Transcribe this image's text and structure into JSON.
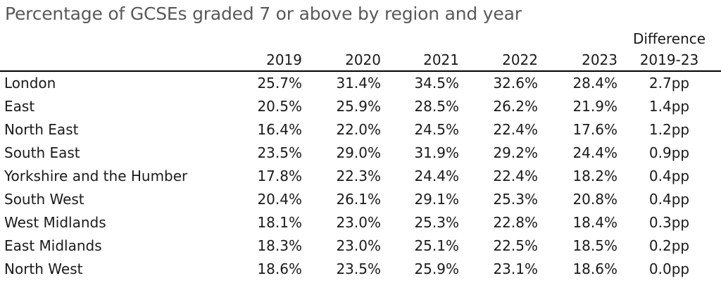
{
  "title": "Percentage of GCSEs graded 7 or above by region and year",
  "columns": {
    "region": "",
    "years": [
      "2019",
      "2020",
      "2021",
      "2022",
      "2023"
    ],
    "difference_line1": "Difference",
    "difference_line2": "2019-23"
  },
  "rows": [
    {
      "region": "London",
      "values": [
        "25.7%",
        "31.4%",
        "34.5%",
        "32.6%",
        "28.4%"
      ],
      "difference": "2.7pp"
    },
    {
      "region": "East",
      "values": [
        "20.5%",
        "25.9%",
        "28.5%",
        "26.2%",
        "21.9%"
      ],
      "difference": "1.4pp"
    },
    {
      "region": "North East",
      "values": [
        "16.4%",
        "22.0%",
        "24.5%",
        "22.4%",
        "17.6%"
      ],
      "difference": "1.2pp"
    },
    {
      "region": "South East",
      "values": [
        "23.5%",
        "29.0%",
        "31.9%",
        "29.2%",
        "24.4%"
      ],
      "difference": "0.9pp"
    },
    {
      "region": "Yorkshire and the Humber",
      "values": [
        "17.8%",
        "22.3%",
        "24.4%",
        "22.4%",
        "18.2%"
      ],
      "difference": "0.4pp"
    },
    {
      "region": "South West",
      "values": [
        "20.4%",
        "26.1%",
        "29.1%",
        "25.3%",
        "20.8%"
      ],
      "difference": "0.4pp"
    },
    {
      "region": "West Midlands",
      "values": [
        "18.1%",
        "23.0%",
        "25.3%",
        "22.8%",
        "18.4%"
      ],
      "difference": "0.3pp"
    },
    {
      "region": "East Midlands",
      "values": [
        "18.3%",
        "23.0%",
        "25.1%",
        "22.5%",
        "18.5%"
      ],
      "difference": "0.2pp"
    },
    {
      "region": "North West",
      "values": [
        "18.6%",
        "23.5%",
        "25.9%",
        "23.1%",
        "18.6%"
      ],
      "difference": "0.0pp"
    }
  ],
  "colors": {
    "title": "#595959",
    "text": "#1a1a1a",
    "header_rule": "#000000",
    "background": "#ffffff"
  }
}
